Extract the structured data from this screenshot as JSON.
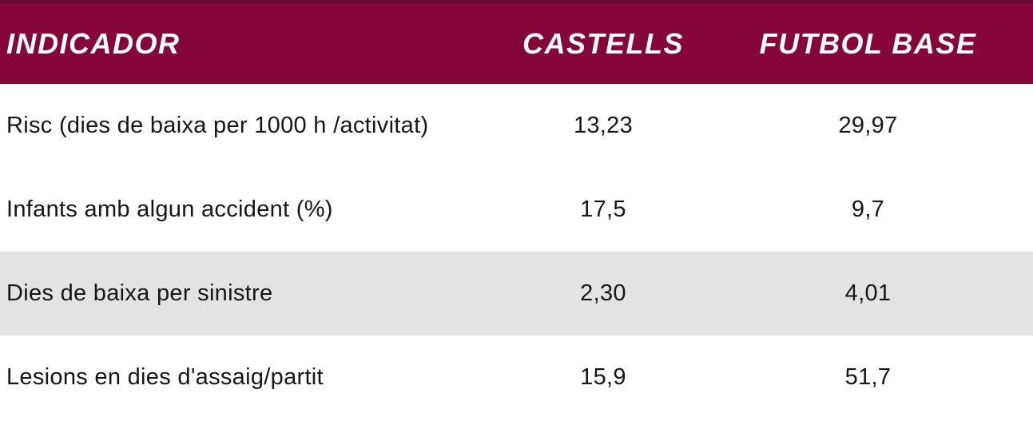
{
  "colors": {
    "header_bg": "#85073a",
    "header_top_edge": "#6d0a31",
    "header_fg": "#ffffff",
    "row_alt_bg": "#e3e3e3",
    "body_text": "#161616"
  },
  "table": {
    "columns": [
      "INDICADOR",
      "CASTELLS",
      "FUTBOL BASE"
    ],
    "rows": [
      {
        "indicator": "Risc (dies de baixa per 1000 h /activitat)",
        "castells": "13,23",
        "futbol_base": "29,97"
      },
      {
        "indicator": "Infants amb algun accident (%)",
        "castells": "17,5",
        "futbol_base": "9,7"
      },
      {
        "indicator": "Dies de baixa per sinistre",
        "castells": "2,30",
        "futbol_base": "4,01"
      },
      {
        "indicator": "Lesions en dies d'assaig/partit",
        "castells": "15,9",
        "futbol_base": "51,7"
      }
    ]
  },
  "chart_data": {
    "type": "table",
    "title": "",
    "columns": [
      "INDICADOR",
      "CASTELLS",
      "FUTBOL BASE"
    ],
    "categories": [
      "Risc (dies de baixa per 1000 h /activitat)",
      "Infants amb algun accident (%)",
      "Dies de baixa per sinistre",
      "Lesions en dies d'assaig/partit"
    ],
    "series": [
      {
        "name": "CASTELLS",
        "values": [
          13.23,
          17.5,
          2.3,
          15.9
        ]
      },
      {
        "name": "FUTBOL BASE",
        "values": [
          29.97,
          9.7,
          4.01,
          51.7
        ]
      }
    ],
    "number_format": "decimal-comma",
    "zebra_row_index": 2,
    "legend_position": "none"
  }
}
